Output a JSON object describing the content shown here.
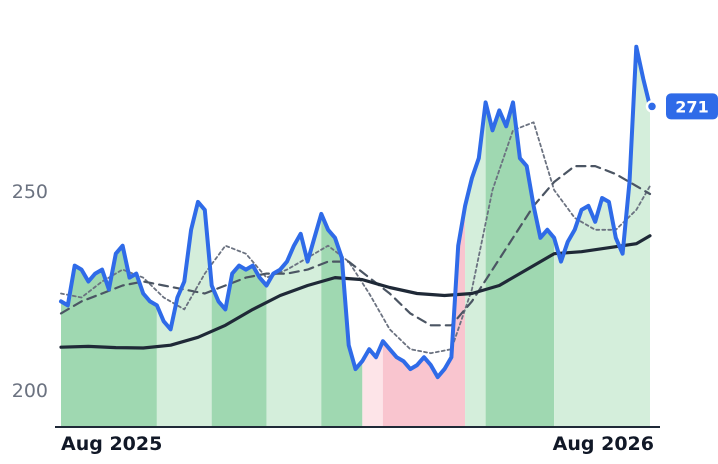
{
  "chart_data": {
    "type": "line",
    "title": "",
    "xlabel": "",
    "ylabel": "",
    "x_tick_labels": [
      "Aug 2025",
      "Aug 2026"
    ],
    "y_tick_labels": [
      "200",
      "250"
    ],
    "ylim": [
      191,
      292
    ],
    "grid": false,
    "legend": "none",
    "last_value_label": "271",
    "colors": {
      "price": "#2f6be8",
      "ma_long": "#1f2937",
      "ma_mid": "#4b5563",
      "ma_short": "#6b7280",
      "bg_green": "#9fd8b1",
      "bg_lightgreen": "#d4eedb",
      "bg_pink": "#f9c5cf",
      "bg_lightpink": "#fde4e8",
      "badge": "#2f6be8"
    },
    "background_bands": [
      {
        "start": 0,
        "end": 14,
        "tone": "green"
      },
      {
        "start": 14,
        "end": 22,
        "tone": "lightgreen"
      },
      {
        "start": 22,
        "end": 30,
        "tone": "green"
      },
      {
        "start": 30,
        "end": 38,
        "tone": "lightgreen"
      },
      {
        "start": 38,
        "end": 44,
        "tone": "green"
      },
      {
        "start": 44,
        "end": 47,
        "tone": "lightpink"
      },
      {
        "start": 47,
        "end": 59,
        "tone": "pink"
      },
      {
        "start": 59,
        "end": 62,
        "tone": "lightgreen"
      },
      {
        "start": 62,
        "end": 72,
        "tone": "green"
      },
      {
        "start": 72,
        "end": 86,
        "tone": "lightgreen"
      },
      {
        "start": 86,
        "end": 87,
        "tone": "green"
      }
    ],
    "series": [
      {
        "key": "price",
        "x": [
          0,
          1,
          2,
          3,
          4,
          5,
          6,
          7,
          8,
          9,
          10,
          11,
          12,
          13,
          14,
          15,
          16,
          17,
          18,
          19,
          20,
          21,
          22,
          23,
          24,
          25,
          26,
          27,
          28,
          29,
          30,
          31,
          32,
          33,
          34,
          35,
          36,
          37,
          38,
          39,
          40,
          41,
          42,
          43,
          44,
          45,
          46,
          47,
          48,
          49,
          50,
          51,
          52,
          53,
          54,
          55,
          56,
          57,
          58,
          59,
          60,
          61,
          62,
          63,
          64,
          65,
          66,
          67,
          68,
          69,
          70,
          71,
          72,
          73,
          74,
          75,
          76,
          77,
          78,
          79,
          80,
          81,
          82,
          83,
          84,
          85,
          86
        ],
        "values": [
          222,
          221,
          231,
          230,
          227,
          229,
          230,
          225,
          234,
          236,
          228,
          229,
          224,
          222,
          221,
          217,
          215,
          223,
          227,
          240,
          247,
          245,
          226,
          222,
          220,
          229,
          231,
          230,
          231,
          228,
          226,
          229,
          230,
          232,
          236,
          239,
          232,
          238,
          244,
          240,
          238,
          233,
          211,
          205,
          207,
          210,
          208,
          212,
          210,
          208,
          207,
          205,
          206,
          208,
          206,
          203,
          205,
          208,
          236,
          246,
          253,
          258,
          272,
          265,
          270,
          266,
          272,
          258,
          256,
          246,
          238,
          240,
          238,
          232,
          237,
          240,
          245,
          246,
          242,
          248,
          247,
          238,
          234,
          252,
          286,
          278,
          271
        ]
      },
      {
        "key": "ma_long",
        "x": [
          0,
          4,
          8,
          12,
          16,
          20,
          24,
          28,
          32,
          36,
          40,
          44,
          48,
          52,
          56,
          60,
          64,
          68,
          72,
          76,
          80,
          84,
          86
        ],
        "values": [
          210.5,
          210.7,
          210.4,
          210.3,
          211.0,
          213.0,
          216.0,
          220.0,
          223.5,
          226.0,
          228.0,
          227.5,
          225.5,
          224.0,
          223.5,
          224.0,
          226.0,
          230.0,
          234.0,
          234.5,
          235.5,
          236.5,
          238.5
        ]
      },
      {
        "key": "ma_mid",
        "x": [
          0,
          3,
          6,
          9,
          12,
          15,
          18,
          21,
          24,
          27,
          30,
          33,
          36,
          39,
          42,
          45,
          48,
          51,
          54,
          57,
          60,
          63,
          66,
          69,
          72,
          75,
          78,
          81,
          84,
          86
        ],
        "values": [
          219,
          222,
          224,
          226,
          227,
          226,
          225,
          224,
          226,
          228,
          229,
          229,
          230,
          232,
          232,
          228,
          224,
          219,
          216,
          216,
          222,
          230,
          238,
          246,
          252,
          256,
          256,
          254,
          251,
          249
        ]
      },
      {
        "key": "ma_short",
        "x": [
          0,
          3,
          6,
          9,
          12,
          15,
          18,
          21,
          24,
          27,
          30,
          33,
          36,
          39,
          42,
          45,
          48,
          51,
          54,
          57,
          60,
          63,
          66,
          69,
          72,
          75,
          78,
          81,
          84,
          86
        ],
        "values": [
          224,
          223,
          227,
          230,
          228,
          223,
          220,
          229,
          236,
          234,
          228,
          230,
          233,
          236,
          232,
          224,
          215,
          210,
          209,
          210,
          225,
          250,
          265,
          267,
          250,
          243,
          240,
          240,
          245,
          251
        ]
      }
    ]
  }
}
